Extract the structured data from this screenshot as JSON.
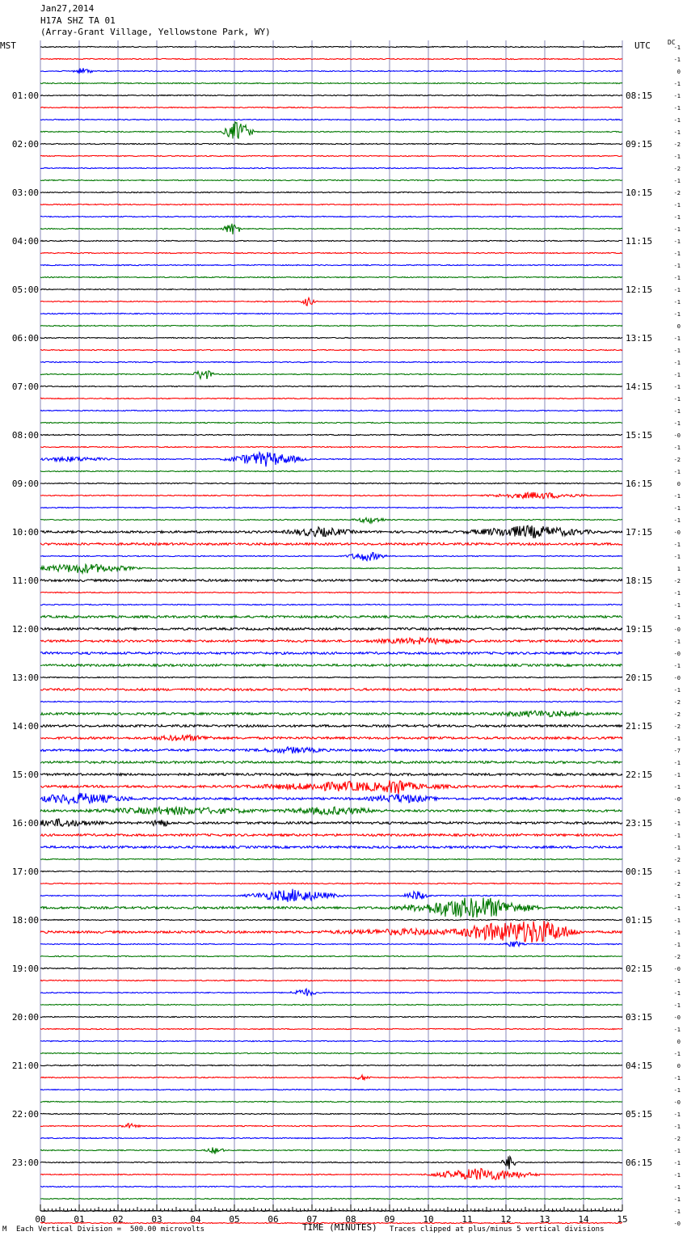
{
  "header": {
    "date": "Jan27,2014",
    "station": "H17A SHZ TA 01",
    "location": "(Array-Grant Village, Yellowstone Park, WY)"
  },
  "axes": {
    "left_zone": "MST",
    "right_zone": "UTC",
    "dc_label": "DC",
    "xlabel": "TIME (MINUTES)",
    "x_ticks": [
      "00",
      "01",
      "02",
      "03",
      "04",
      "05",
      "06",
      "07",
      "08",
      "09",
      "10",
      "11",
      "12",
      "13",
      "14",
      "15"
    ]
  },
  "footer": {
    "left": "Each Vertical Division =  500.00 microvolts",
    "right": "Traces clipped at plus/minus 5 vertical divisions",
    "mark": "M"
  },
  "colors": {
    "trace_cycle": [
      "#000000",
      "#ff0000",
      "#0000ff",
      "#007700"
    ],
    "grid": "#8a8ab8"
  },
  "chart_data": {
    "type": "helicorder",
    "x_range_minutes": [
      0,
      15
    ],
    "traces_per_hour": 4,
    "hour_labels_mst": [
      "01:00",
      "02:00",
      "03:00",
      "04:00",
      "05:00",
      "06:00",
      "07:00",
      "08:00",
      "09:00",
      "10:00",
      "11:00",
      "12:00",
      "13:00",
      "14:00",
      "15:00",
      "16:00",
      "17:00",
      "18:00",
      "19:00",
      "20:00",
      "21:00",
      "22:00",
      "23:00"
    ],
    "hour_labels_utc": [
      "08:15",
      "09:15",
      "10:15",
      "11:15",
      "12:15",
      "13:15",
      "14:15",
      "15:15",
      "16:15",
      "17:15",
      "18:15",
      "19:15",
      "20:15",
      "21:15",
      "22:15",
      "23:15",
      "00:15",
      "01:15",
      "02:15",
      "03:15",
      "04:15",
      "05:15",
      "06:15"
    ],
    "dc_offsets": [
      "-1",
      "-1",
      "0",
      "-1",
      "-1",
      "-1",
      "-1",
      "-1",
      "-2",
      "-1",
      "-2",
      "-1",
      "-2",
      "-1",
      "-1",
      "-1",
      "-1",
      "-1",
      "-1",
      "-1",
      "-1",
      "-1",
      "-1",
      "0",
      "-1",
      "-1",
      "-1",
      "-1",
      "-1",
      "-1",
      "-1",
      "-1",
      "-0",
      "-1",
      "-2",
      "-1",
      "0",
      "-1",
      "-1",
      "-1",
      "-0",
      "-1",
      "-1",
      "1",
      "-2",
      "-1",
      "-1",
      "-1",
      "-0",
      "-1",
      "-0",
      "-1",
      "-0",
      "-1",
      "-2",
      "-2",
      "-2",
      "-1",
      "-7",
      "-1",
      "-1",
      "-1",
      "-0",
      "-1",
      "-1",
      "-1",
      "-1",
      "-2",
      "-1",
      "-2",
      "-1",
      "-1",
      "-1",
      "-1",
      "-1",
      "-2",
      "-0",
      "-1",
      "-1",
      "-1",
      "-0",
      "-1",
      "0",
      "-1",
      "0",
      "-1",
      "-1",
      "-0",
      "-1",
      "-1",
      "-2",
      "-1",
      "-1",
      "-1",
      "-1",
      "-1",
      "-1",
      "-0"
    ],
    "events": [
      {
        "trace": 2,
        "minute": 1.1,
        "amp": 4,
        "width": 0.3
      },
      {
        "trace": 7,
        "minute": 5.1,
        "amp": 14,
        "width": 0.45
      },
      {
        "trace": 15,
        "minute": 4.95,
        "amp": 8,
        "width": 0.3
      },
      {
        "trace": 21,
        "minute": 6.9,
        "amp": 6,
        "width": 0.2
      },
      {
        "trace": 27,
        "minute": 4.2,
        "amp": 8,
        "width": 0.3
      },
      {
        "trace": 34,
        "minute": 0.8,
        "amp": 3,
        "width": 1.2
      },
      {
        "trace": 34,
        "minute": 5.8,
        "amp": 9,
        "width": 1.2
      },
      {
        "trace": 37,
        "minute": 12.8,
        "amp": 4,
        "width": 1.5
      },
      {
        "trace": 39,
        "minute": 8.5,
        "amp": 4,
        "width": 0.5
      },
      {
        "trace": 40,
        "minute": 7.2,
        "amp": 5,
        "width": 1.0
      },
      {
        "trace": 40,
        "minute": 12.6,
        "amp": 7,
        "width": 1.8
      },
      {
        "trace": 42,
        "minute": 8.4,
        "amp": 6,
        "width": 0.6
      },
      {
        "trace": 43,
        "minute": 1.1,
        "amp": 6,
        "width": 1.6
      },
      {
        "trace": 49,
        "minute": 9.8,
        "amp": 3,
        "width": 1.5
      },
      {
        "trace": 55,
        "minute": 12.9,
        "amp": 3,
        "width": 1.5
      },
      {
        "trace": 57,
        "minute": 3.7,
        "amp": 3,
        "width": 1.0
      },
      {
        "trace": 58,
        "minute": 6.5,
        "amp": 3,
        "width": 1.0
      },
      {
        "trace": 61,
        "minute": 8.0,
        "amp": 5,
        "width": 3.0
      },
      {
        "trace": 61,
        "minute": 9.2,
        "amp": 7,
        "width": 0.4
      },
      {
        "trace": 62,
        "minute": 1.0,
        "amp": 6,
        "width": 1.6
      },
      {
        "trace": 62,
        "minute": 9.3,
        "amp": 5,
        "width": 1.0
      },
      {
        "trace": 63,
        "minute": 3.5,
        "amp": 4,
        "width": 2.5
      },
      {
        "trace": 63,
        "minute": 7.5,
        "amp": 4,
        "width": 1.5
      },
      {
        "trace": 64,
        "minute": 0.5,
        "amp": 4,
        "width": 1.2
      },
      {
        "trace": 64,
        "minute": 3.1,
        "amp": 5,
        "width": 0.3
      },
      {
        "trace": 70,
        "minute": 6.5,
        "amp": 8,
        "width": 1.4
      },
      {
        "trace": 70,
        "minute": 9.7,
        "amp": 6,
        "width": 0.4
      },
      {
        "trace": 71,
        "minute": 10.5,
        "amp": 7,
        "width": 1.5
      },
      {
        "trace": 71,
        "minute": 11.5,
        "amp": 10,
        "width": 1.5
      },
      {
        "trace": 73,
        "minute": 11.6,
        "amp": 9,
        "width": 1.0
      },
      {
        "trace": 73,
        "minute": 12.8,
        "amp": 15,
        "width": 1.2
      },
      {
        "trace": 73,
        "minute": 9.5,
        "amp": 3,
        "width": 2.5
      },
      {
        "trace": 74,
        "minute": 12.2,
        "amp": 4,
        "width": 0.3
      },
      {
        "trace": 78,
        "minute": 6.8,
        "amp": 5,
        "width": 0.4
      },
      {
        "trace": 85,
        "minute": 8.3,
        "amp": 3,
        "width": 0.3
      },
      {
        "trace": 89,
        "minute": 2.3,
        "amp": 3,
        "width": 0.3
      },
      {
        "trace": 91,
        "minute": 4.5,
        "amp": 4,
        "width": 0.3
      },
      {
        "trace": 92,
        "minute": 12.1,
        "amp": 9,
        "width": 0.25
      },
      {
        "trace": 93,
        "minute": 11.4,
        "amp": 8,
        "width": 1.6
      }
    ],
    "noisy_traces": [
      40,
      41,
      44,
      47,
      48,
      49,
      50,
      51,
      53,
      55,
      56,
      57,
      58,
      59,
      60,
      61,
      62,
      63,
      64,
      65,
      66,
      71,
      73
    ]
  }
}
